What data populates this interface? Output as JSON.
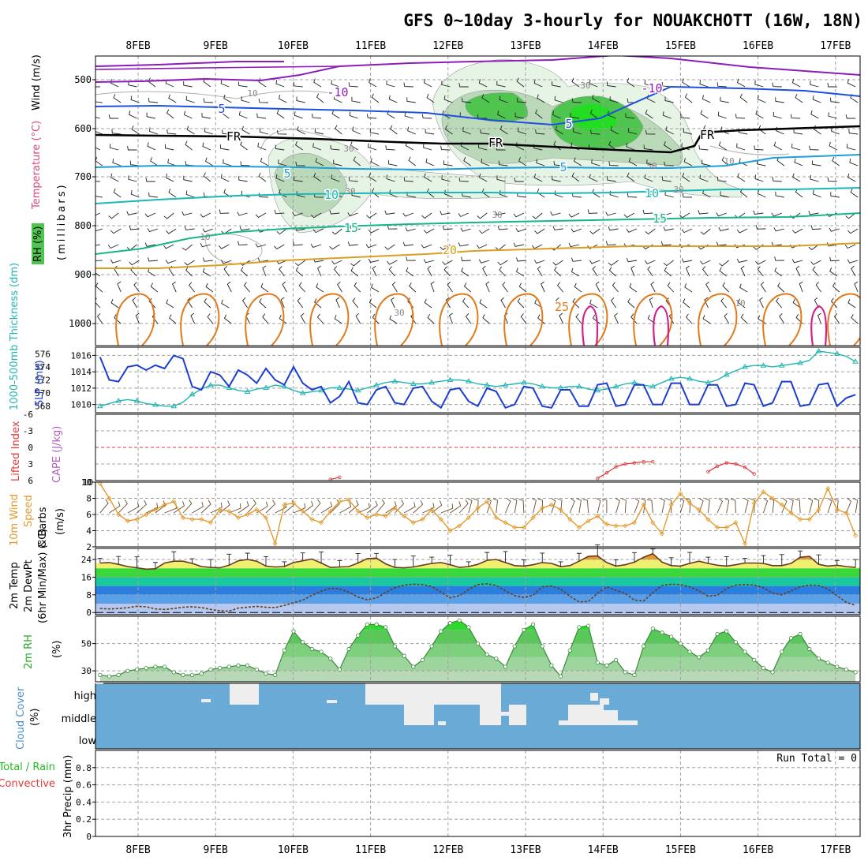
{
  "title": "GFS 0~10day 3-hourly for NOUAKCHOTT (16W, 18N)",
  "colors": {
    "frame": "#000000",
    "grid": "#a0a0a0",
    "rh_light": "#e6f4e6",
    "rh_mid": "#b9d9b9",
    "rh_dark": "#4fc54f",
    "rh_bright": "#22dd22",
    "temp_m10": "#8e1cb8",
    "temp_5": "#1f4fdc",
    "temp_fr": "#000000",
    "temp_p5": "#1e9fd9",
    "temp_10": "#19b8b8",
    "temp_15": "#16b58a",
    "temp_20": "#d9a020",
    "temp_25": "#e07a1a",
    "temp_30": "#d0208c",
    "slp": "#1c3fd0",
    "thickness": "#22b5b0",
    "li": "#e03a3a",
    "wind10": "#e39a2e",
    "cloud": "#6aaad6",
    "cloud_fill": "#eeeeee",
    "rh2m": "#4ec74e"
  },
  "date_labels": [
    "8FEB",
    "9FEB",
    "10FEB",
    "11FEB",
    "12FEB",
    "13FEB",
    "14FEB",
    "15FEB",
    "16FEB",
    "17FEB"
  ],
  "panels": {
    "upper": {
      "ylabel_wind": "Wind (m/s)",
      "ylabel_temp": "Temperature (°C)",
      "ylabel_units": "(millibars)",
      "ylabel_rh": "RH (%)",
      "ticks": [
        "500",
        "600",
        "700",
        "800",
        "900",
        "1000"
      ],
      "contour_labels": [
        {
          "text": "-10",
          "series": "temp_m10"
        },
        {
          "text": "-10",
          "series": "temp_m10"
        },
        {
          "text": "5",
          "series": "temp_5"
        },
        {
          "text": "5",
          "series": "temp_5"
        },
        {
          "text": "FR",
          "series": "temp_fr"
        },
        {
          "text": "FR",
          "series": "temp_fr"
        },
        {
          "text": "FR",
          "series": "temp_fr"
        },
        {
          "text": "5",
          "series": "temp_p5"
        },
        {
          "text": "5",
          "series": "temp_p5"
        },
        {
          "text": "10",
          "series": "temp_10"
        },
        {
          "text": "10",
          "series": "temp_10"
        },
        {
          "text": "15",
          "series": "temp_15"
        },
        {
          "text": "15",
          "series": "temp_15"
        },
        {
          "text": "20",
          "series": "temp_20"
        },
        {
          "text": "25",
          "series": "temp_25"
        }
      ],
      "rh_labels": [
        "10",
        "30",
        "30",
        "10",
        "30",
        "30",
        "50",
        "30",
        "10",
        "10",
        "30"
      ]
    },
    "slp": {
      "ylabel_thick": "1000-500mb Thickness (dm)",
      "ylabel_slp": "SLP (mb)",
      "thick_ticks": [
        "576",
        "574",
        "572",
        "570",
        "568"
      ],
      "slp_ticks": [
        "1016",
        "1014",
        "1012",
        "1010"
      ]
    },
    "li": {
      "ylabel_li": "Lifted Index",
      "ylabel_cape": "CAPE (J/kg)",
      "ticks": [
        "-6",
        "-3",
        "0",
        "3",
        "6"
      ],
      "cape_tick": "10"
    },
    "wind10": {
      "ylabel_a": "10m Wind",
      "ylabel_b": "Speed",
      "ylabel_c": "& Barbs",
      "ylabel_d": "(m/s)",
      "ticks": [
        "10",
        "8",
        "6",
        "4",
        "2"
      ]
    },
    "temp2m": {
      "ylabel_a": "2m Temp",
      "ylabel_b": "2m DewPt",
      "ylabel_c": "(6hr Min/Max) (°C)",
      "ticks": [
        "24",
        "16",
        "8",
        "0"
      ]
    },
    "rh2m": {
      "ylabel_a": "2m RH",
      "ylabel_b": "(%)",
      "ticks": [
        "50",
        "30"
      ]
    },
    "cloud": {
      "ylabel_a": "Cloud Cover",
      "ylabel_b": "(%)",
      "levels": [
        "high",
        "middle",
        "low"
      ]
    },
    "precip": {
      "ylabel_a": "Total / Rain",
      "ylabel_b": "Convective",
      "ylabel_c": "3hr Precip (mm)",
      "ticks": [
        "0.8",
        "0.6",
        "0.4",
        "0.2",
        "0"
      ],
      "run_total": "Run Total = 0"
    }
  },
  "chart_data": [
    {
      "type": "line",
      "name": "SLP / 1000-500mb Thickness",
      "x_unit": "3-hourly steps from 7FEB 12Z",
      "series": [
        {
          "name": "SLP (mb)",
          "axis": "right",
          "values": [
            1015.8,
            1013.0,
            1012.8,
            1014.6,
            1014.8,
            1014.2,
            1014.8,
            1014.4,
            1016.0,
            1015.6,
            1012.2,
            1011.8,
            1014.0,
            1013.6,
            1012.2,
            1014.2,
            1013.6,
            1012.6,
            1014.4,
            1013.0,
            1012.4,
            1014.6,
            1012.6,
            1011.8,
            1012.2,
            1010.2,
            1011.0,
            1012.8,
            1010.2,
            1010.0,
            1011.8,
            1012.2,
            1010.2,
            1010.0,
            1012.0,
            1012.2,
            1010.4,
            1009.6,
            1011.8,
            1012.0,
            1010.4,
            1009.8,
            1012.0,
            1011.6,
            1009.6,
            1010.0,
            1012.2,
            1012.0,
            1009.8,
            1009.6,
            1011.8,
            1011.8,
            1009.8,
            1009.8,
            1012.4,
            1012.6,
            1009.8,
            1010.0,
            1012.4,
            1012.4,
            1010.0,
            1010.0,
            1012.6,
            1012.6,
            1010.0,
            1010.0,
            1012.4,
            1012.4,
            1009.8,
            1010.0,
            1012.6,
            1012.4,
            1009.8,
            1010.2,
            1012.8,
            1012.8,
            1009.8,
            1010.0,
            1012.4,
            1012.6,
            1009.8,
            1010.8,
            1011.2
          ]
        },
        {
          "name": "1000-500mb Thickness (dm)",
          "axis": "left",
          "values": [
            568.0,
            568.4,
            568.8,
            569.0,
            568.8,
            568.4,
            568.2,
            568.0,
            568.0,
            568.6,
            569.8,
            570.6,
            571.2,
            571.2,
            570.8,
            570.4,
            570.2,
            570.6,
            570.8,
            571.2,
            571.0,
            570.4,
            570.0,
            570.2,
            570.4,
            570.8,
            570.8,
            570.6,
            570.4,
            570.8,
            571.2,
            571.6,
            571.8,
            571.6,
            571.4,
            571.4,
            571.6,
            571.8,
            572.0,
            572.0,
            571.8,
            571.4,
            571.2,
            571.0,
            571.2,
            571.4,
            571.6,
            571.4,
            571.0,
            570.8,
            570.8,
            571.0,
            571.0,
            570.6,
            570.4,
            570.6,
            571.0,
            571.4,
            571.6,
            571.2,
            571.0,
            571.6,
            572.2,
            572.4,
            572.2,
            571.8,
            571.6,
            572.0,
            572.8,
            573.4,
            574.0,
            574.2,
            574.2,
            574.0,
            574.2,
            574.4,
            574.6,
            575.0,
            576.4,
            576.2,
            576.0,
            575.6,
            574.8
          ]
        }
      ],
      "ylim_right": [
        1009,
        1017
      ],
      "ylim_left": [
        567,
        577
      ]
    },
    {
      "type": "line",
      "name": "Lifted Index / CAPE",
      "series": [
        {
          "name": "Lifted Index",
          "points": [
            [
              25,
              5.8
            ],
            [
              26,
              5.4
            ],
            [
              54,
              4.5
            ],
            [
              56,
              3.2
            ],
            [
              58,
              2.8
            ],
            [
              59,
              2.6
            ],
            [
              60,
              2.6
            ]
          ],
          "segments": [
            [
              [
                25,
                5.8
              ],
              [
                26,
                5.4
              ]
            ],
            [
              [
                54,
                5.6
              ],
              [
                55,
                4.6
              ],
              [
                56,
                3.5
              ],
              [
                57,
                3.0
              ],
              [
                58,
                2.8
              ],
              [
                59,
                2.6
              ],
              [
                60,
                2.6
              ]
            ],
            [
              [
                66,
                4.4
              ],
              [
                67,
                3.4
              ],
              [
                68,
                2.8
              ],
              [
                69,
                3.0
              ],
              [
                70,
                3.6
              ],
              [
                71,
                4.8
              ]
            ]
          ]
        }
      ],
      "ylim": [
        6,
        -6
      ]
    },
    {
      "type": "line",
      "name": "10m Wind Speed",
      "series": [
        {
          "name": "10m Wind Speed (m/s)",
          "values": [
            9.8,
            8.0,
            6.0,
            5.2,
            5.4,
            6.0,
            6.6,
            7.2,
            7.6,
            5.6,
            5.4,
            5.4,
            5.0,
            6.6,
            6.4,
            5.6,
            6.0,
            6.6,
            5.6,
            2.4,
            7.2,
            7.4,
            6.4,
            5.4,
            5.0,
            6.4,
            7.6,
            7.8,
            6.4,
            5.6,
            6.0,
            5.8,
            6.8,
            5.8,
            5.0,
            5.4,
            6.6,
            5.4,
            4.0,
            4.6,
            5.6,
            6.8,
            7.6,
            5.6,
            5.0,
            4.4,
            4.4,
            5.6,
            6.8,
            7.2,
            6.6,
            5.4,
            4.4,
            5.2,
            5.8,
            4.8,
            4.6,
            4.6,
            5.0,
            7.2,
            5.0,
            3.6,
            7.2,
            8.6,
            7.4,
            6.6,
            5.4,
            4.4,
            4.4,
            5.0,
            2.4,
            7.4,
            8.8,
            8.0,
            7.2,
            6.2,
            5.4,
            5.4,
            6.6,
            9.2,
            6.6,
            6.2,
            3.4
          ]
        }
      ],
      "ylim": [
        2,
        10
      ]
    },
    {
      "type": "area",
      "name": "2m Temperature / DewPoint",
      "series": [
        {
          "name": "2m Temp (°C)",
          "values": [
            22.4,
            22.6,
            21.8,
            20.8,
            20.2,
            19.6,
            19.8,
            22.4,
            23.2,
            23.2,
            22.2,
            20.8,
            20.4,
            20.2,
            21.4,
            23.4,
            24.0,
            23.2,
            21.0,
            20.6,
            20.8,
            22.6,
            23.4,
            24.2,
            22.4,
            20.4,
            20.6,
            20.8,
            22.4,
            24.4,
            24.6,
            22.0,
            20.4,
            20.2,
            20.6,
            21.4,
            22.2,
            22.6,
            21.6,
            20.4,
            20.8,
            21.8,
            23.6,
            24.0,
            22.6,
            21.2,
            21.0,
            21.6,
            22.6,
            22.2,
            20.8,
            21.2,
            23.2,
            25.4,
            25.6,
            22.6,
            21.0,
            21.6,
            22.8,
            25.0,
            26.6,
            22.8,
            21.2,
            21.0,
            22.2,
            23.2,
            22.2,
            21.4,
            21.0,
            21.6,
            22.4,
            22.4,
            22.2,
            21.2,
            21.2,
            22.2,
            25.0,
            25.4,
            21.8,
            21.0,
            21.4,
            20.8,
            20.4
          ]
        },
        {
          "name": "2m DewPt (°C)",
          "values": [
            1.8,
            1.6,
            1.8,
            2.2,
            2.8,
            2.6,
            1.6,
            1.4,
            1.8,
            2.4,
            2.6,
            2.2,
            1.4,
            0.8,
            0.6,
            2.0,
            2.4,
            2.8,
            2.4,
            2.2,
            3.2,
            4.4,
            5.6,
            7.8,
            9.6,
            11.0,
            10.6,
            9.2,
            7.0,
            5.8,
            6.6,
            9.0,
            11.2,
            12.4,
            12.8,
            12.6,
            11.8,
            9.2,
            6.6,
            7.6,
            10.4,
            12.6,
            13.0,
            12.2,
            9.8,
            7.6,
            6.8,
            7.8,
            11.6,
            12.0,
            10.6,
            7.4,
            4.8,
            5.0,
            8.8,
            11.6,
            10.0,
            8.6,
            5.6,
            5.2,
            9.0,
            12.2,
            12.8,
            12.6,
            11.6,
            9.8,
            7.4,
            7.8,
            10.8,
            12.4,
            12.6,
            12.4,
            11.2,
            8.8,
            8.0,
            9.8,
            11.6,
            12.4,
            12.2,
            10.6,
            7.6,
            4.6,
            3.2
          ]
        }
      ],
      "ylim": [
        -1,
        29
      ]
    },
    {
      "type": "area",
      "name": "2m RH",
      "series": [
        {
          "name": "2m RH (%)",
          "values": [
            27,
            26,
            27,
            30,
            31,
            32,
            33,
            33,
            29,
            27,
            27,
            28,
            31,
            32,
            33,
            34,
            34,
            31,
            28,
            27,
            45,
            59,
            51,
            46,
            44,
            39,
            31,
            46,
            56,
            64,
            64,
            62,
            48,
            41,
            33,
            38,
            48,
            59,
            65,
            67,
            62,
            50,
            42,
            39,
            33,
            48,
            60,
            64,
            48,
            34,
            26,
            45,
            62,
            63,
            36,
            34,
            38,
            29,
            27,
            48,
            61,
            58,
            55,
            50,
            44,
            40,
            45,
            57,
            59,
            51,
            44,
            38,
            32,
            29,
            44,
            54,
            57,
            46,
            39,
            36,
            33,
            31,
            29
          ]
        }
      ],
      "ylim": [
        22,
        70
      ]
    },
    {
      "type": "heatmap",
      "name": "Cloud Cover",
      "rows": [
        "high",
        "middle",
        "low"
      ],
      "note": "light cells mark partial high/middle cloud"
    },
    {
      "type": "bar",
      "name": "3hr Precip",
      "values": [],
      "ylim": [
        0,
        1
      ]
    }
  ]
}
